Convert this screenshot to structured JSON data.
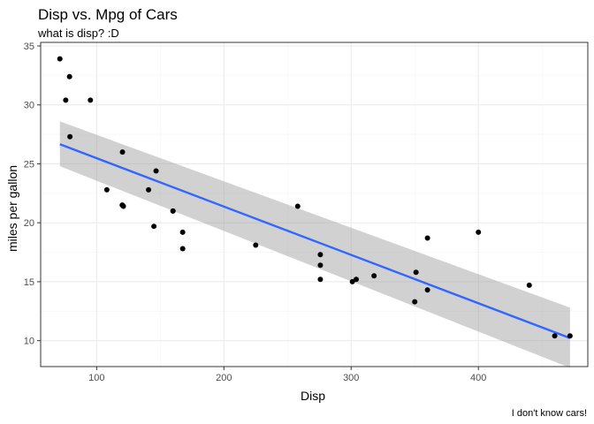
{
  "chart_data": {
    "type": "scatter",
    "title": "Disp vs. Mpg of Cars",
    "subtitle": "what is disp? :D",
    "xlabel": "Disp",
    "ylabel": "miles per gallon",
    "caption": "I don't know cars!",
    "xlim": [
      56,
      486
    ],
    "ylim": [
      7.8,
      35.3
    ],
    "xticks": [
      100,
      200,
      300,
      400
    ],
    "yticks": [
      10,
      15,
      20,
      25,
      30,
      35
    ],
    "x_tick_labels": [
      "100",
      "200",
      "300",
      "400"
    ],
    "y_tick_labels": [
      "10",
      "15",
      "20",
      "25",
      "30",
      "35"
    ],
    "grid": true,
    "points": [
      {
        "x": 160,
        "y": 21.0
      },
      {
        "x": 160,
        "y": 21.0
      },
      {
        "x": 108,
        "y": 22.8
      },
      {
        "x": 258,
        "y": 21.4
      },
      {
        "x": 360,
        "y": 18.7
      },
      {
        "x": 225,
        "y": 18.1
      },
      {
        "x": 360,
        "y": 14.3
      },
      {
        "x": 146.7,
        "y": 24.4
      },
      {
        "x": 140.8,
        "y": 22.8
      },
      {
        "x": 167.6,
        "y": 19.2
      },
      {
        "x": 167.6,
        "y": 17.8
      },
      {
        "x": 275.8,
        "y": 16.4
      },
      {
        "x": 275.8,
        "y": 17.3
      },
      {
        "x": 275.8,
        "y": 15.2
      },
      {
        "x": 472,
        "y": 10.4
      },
      {
        "x": 460,
        "y": 10.4
      },
      {
        "x": 440,
        "y": 14.7
      },
      {
        "x": 78.7,
        "y": 32.4
      },
      {
        "x": 75.7,
        "y": 30.4
      },
      {
        "x": 71.1,
        "y": 33.9
      },
      {
        "x": 120.1,
        "y": 21.5
      },
      {
        "x": 318,
        "y": 15.5
      },
      {
        "x": 304,
        "y": 15.2
      },
      {
        "x": 350,
        "y": 13.3
      },
      {
        "x": 400,
        "y": 19.2
      },
      {
        "x": 79,
        "y": 27.3
      },
      {
        "x": 120.3,
        "y": 26.0
      },
      {
        "x": 95.1,
        "y": 30.4
      },
      {
        "x": 351,
        "y": 15.8
      },
      {
        "x": 145,
        "y": 19.7
      },
      {
        "x": 301,
        "y": 15.0
      },
      {
        "x": 121,
        "y": 21.4
      }
    ],
    "trend": {
      "method": "linear",
      "x": [
        71.1,
        472
      ],
      "y": [
        26.66,
        10.22
      ],
      "ci_upper": [
        28.6,
        12.8
      ],
      "ci_lower": [
        24.8,
        7.7
      ]
    },
    "colors": {
      "points": "#000000",
      "line": "#3366FF",
      "ribbon": "#999999",
      "grid_major": "#ebebeb",
      "grid_minor": "#f5f5f5",
      "border": "#333333"
    }
  }
}
